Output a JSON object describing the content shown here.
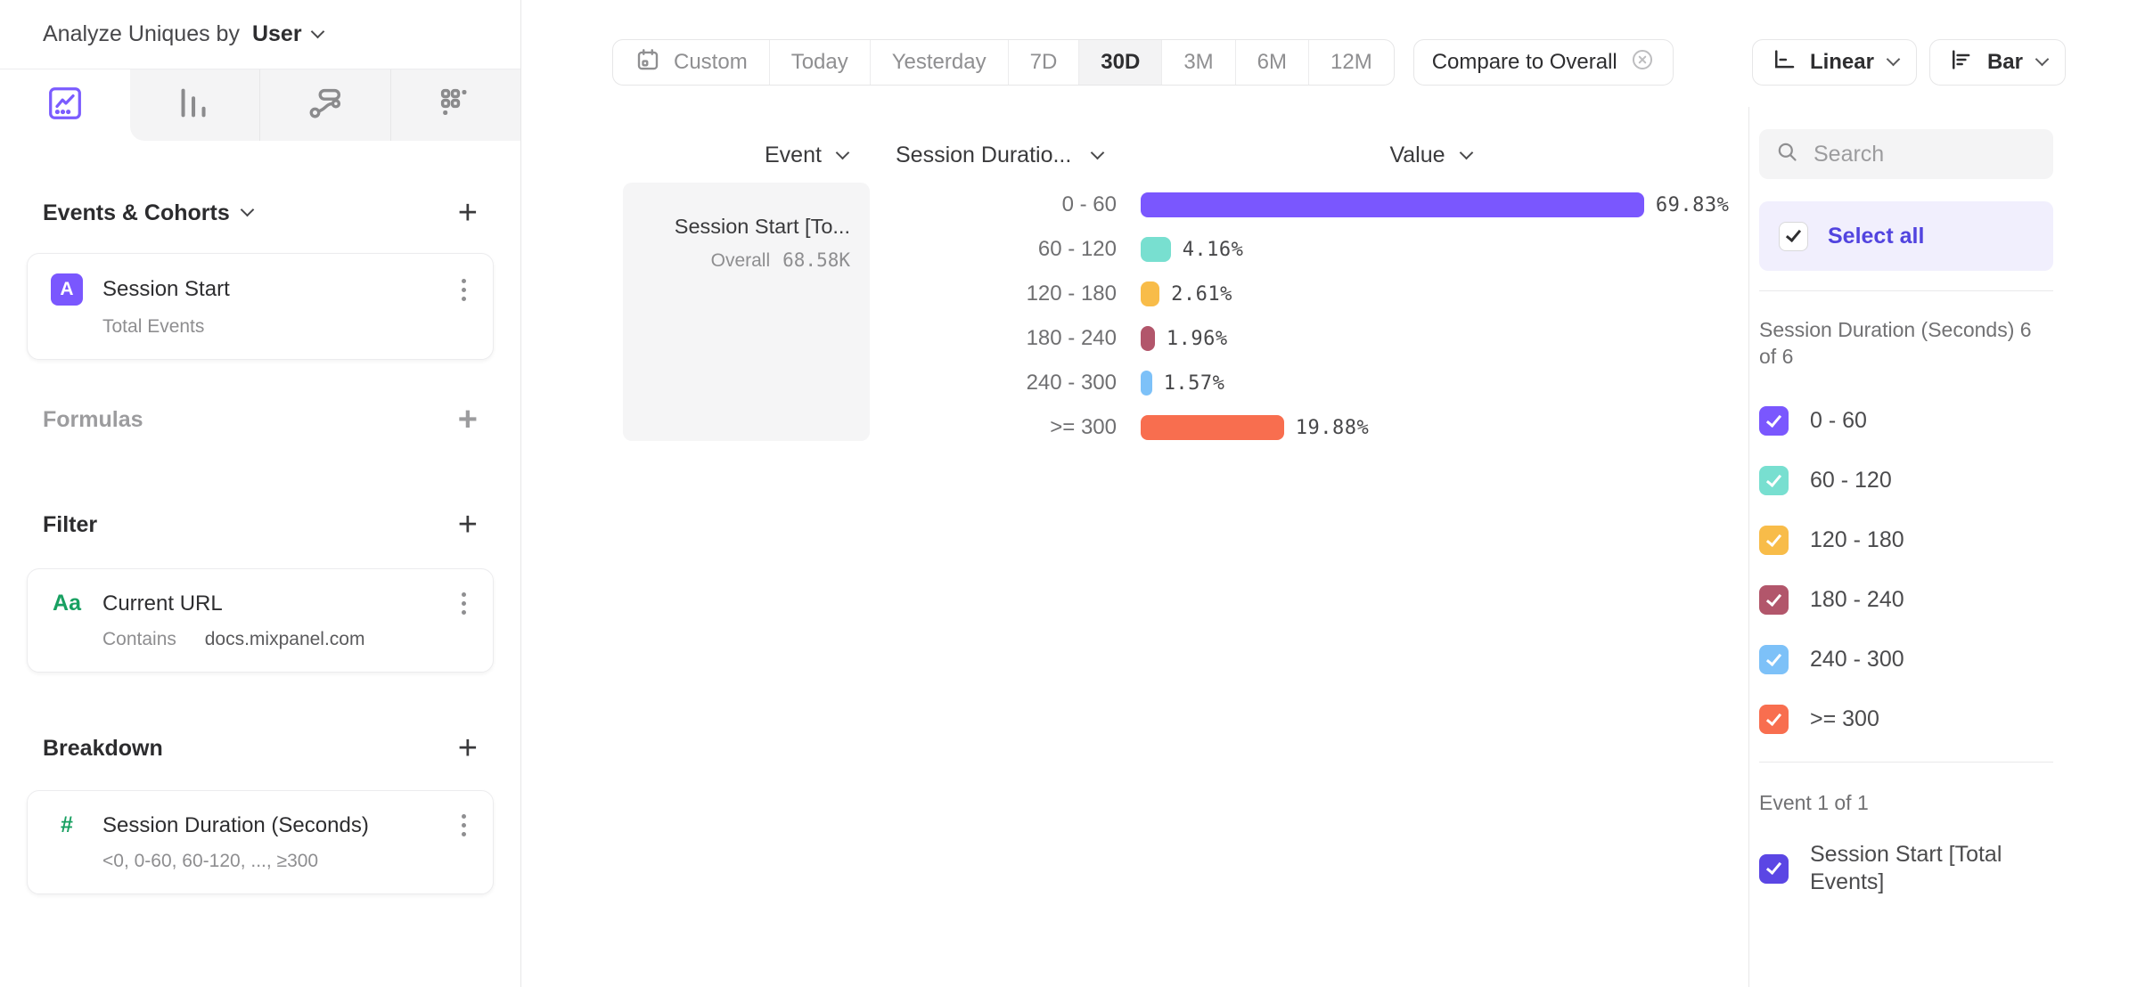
{
  "sidebar": {
    "analyze_label": "Analyze Uniques by",
    "analyze_value": "User",
    "events_section": {
      "title": "Events & Cohorts",
      "card": {
        "badge": "A",
        "title": "Session Start",
        "subtitle": "Total Events"
      }
    },
    "formulas_section": {
      "title": "Formulas"
    },
    "filter_section": {
      "title": "Filter",
      "card": {
        "badge": "Aa",
        "title": "Current URL",
        "operator": "Contains",
        "value": "docs.mixpanel.com"
      }
    },
    "breakdown_section": {
      "title": "Breakdown",
      "card": {
        "badge": "#",
        "title": "Session Duration (Seconds)",
        "subtitle": "<0, 0-60, 60-120, ..., ≥300"
      }
    }
  },
  "toolbar": {
    "date_ranges": [
      "Custom",
      "Today",
      "Yesterday",
      "7D",
      "30D",
      "3M",
      "6M",
      "12M"
    ],
    "selected_range": "30D",
    "compare_label": "Compare to Overall",
    "scale_label": "Linear",
    "chart_type_label": "Bar"
  },
  "table": {
    "col_event": "Event",
    "col_breakdown": "Session Duratio...",
    "col_value": "Value",
    "event_cell": {
      "title": "Session Start [To...",
      "overall_label": "Overall",
      "overall_value": "68.58K"
    }
  },
  "chart_data": {
    "type": "bar",
    "orientation": "horizontal",
    "event": "Session Start [Total Events]",
    "overall_total": "68.58K",
    "value_format": "percent",
    "xlim": [
      0,
      100
    ],
    "categories": [
      "0 - 60",
      "60 - 120",
      "120 - 180",
      "180 - 240",
      "240 - 300",
      ">= 300"
    ],
    "values": [
      69.83,
      4.16,
      2.61,
      1.96,
      1.57,
      19.88
    ],
    "labels": [
      "69.83%",
      "4.16%",
      "2.61%",
      "1.96%",
      "1.57%",
      "19.88%"
    ],
    "colors": [
      "#7a57fe",
      "#78dfd0",
      "#f8bc49",
      "#b2566b",
      "#7dc1f8",
      "#f86e4f"
    ]
  },
  "legend": {
    "search_placeholder": "Search",
    "select_all_label": "Select all",
    "group_breakdown_label": "Session Duration (Seconds) 6 of 6",
    "items": [
      {
        "label": "0 - 60",
        "color": "#7a57fe",
        "checked": true
      },
      {
        "label": "60 - 120",
        "color": "#78dfd0",
        "checked": true
      },
      {
        "label": "120 - 180",
        "color": "#f8bc49",
        "checked": true
      },
      {
        "label": "180 - 240",
        "color": "#b2566b",
        "checked": true
      },
      {
        "label": "240 - 300",
        "color": "#7dc1f8",
        "checked": true
      },
      {
        "label": ">= 300",
        "color": "#f86e4f",
        "checked": true
      }
    ],
    "group_event_label": "Event 1 of 1",
    "event_item": {
      "label": "Session Start [Total Events]",
      "color": "#5b46e4",
      "checked": true
    }
  },
  "accent_color": "#7a57fe"
}
